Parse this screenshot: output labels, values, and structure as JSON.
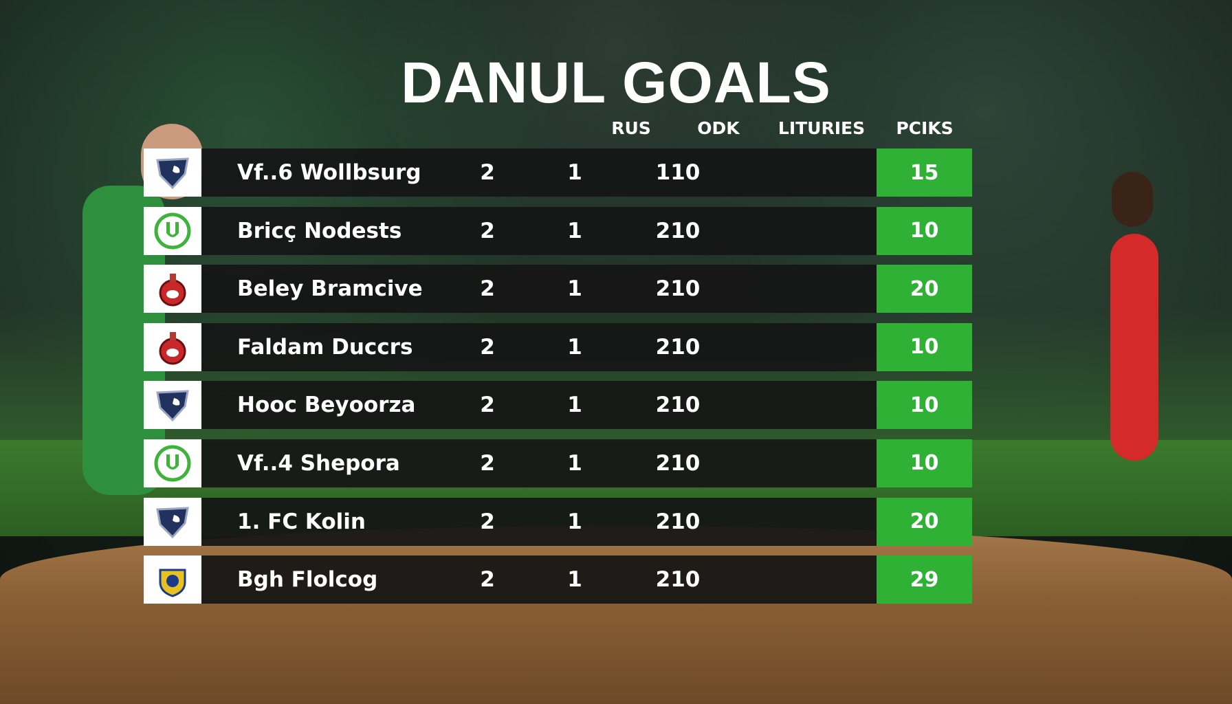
{
  "title": "DANUL GOALS",
  "headers": [
    "RUS",
    "ODK",
    "LITURIES",
    "PCIKS"
  ],
  "colors": {
    "points_cell": "#2fb136",
    "row_bg": "#161616"
  },
  "rows": [
    {
      "logo": "blue-shield-crest",
      "team": "Vf..6 Wollbsurg",
      "rus": "2",
      "odk": "1",
      "lituries": "110",
      "pciks": "15"
    },
    {
      "logo": "green-u-crest",
      "team": "Bricç Nodests",
      "rus": "2",
      "odk": "1",
      "lituries": "210",
      "pciks": "10"
    },
    {
      "logo": "red-goat-crest",
      "team": "Beley Bramcive",
      "rus": "2",
      "odk": "1",
      "lituries": "210",
      "pciks": "20"
    },
    {
      "logo": "red-goat-crest",
      "team": "Faldam Duccrs",
      "rus": "2",
      "odk": "1",
      "lituries": "210",
      "pciks": "10"
    },
    {
      "logo": "blue-shield-crest",
      "team": "Hooc Beyoorza",
      "rus": "2",
      "odk": "1",
      "lituries": "210",
      "pciks": "10"
    },
    {
      "logo": "green-u-crest",
      "team": "Vf..4 Shepora",
      "rus": "2",
      "odk": "1",
      "lituries": "210",
      "pciks": "10"
    },
    {
      "logo": "blue-shield-crest",
      "team": "1. FC Kolin",
      "rus": "2",
      "odk": "1",
      "lituries": "210",
      "pciks": "20"
    },
    {
      "logo": "gold-blue-crest",
      "team": "Bgh Flolcog",
      "rus": "2",
      "odk": "1",
      "lituries": "210",
      "pciks": "29"
    }
  ]
}
